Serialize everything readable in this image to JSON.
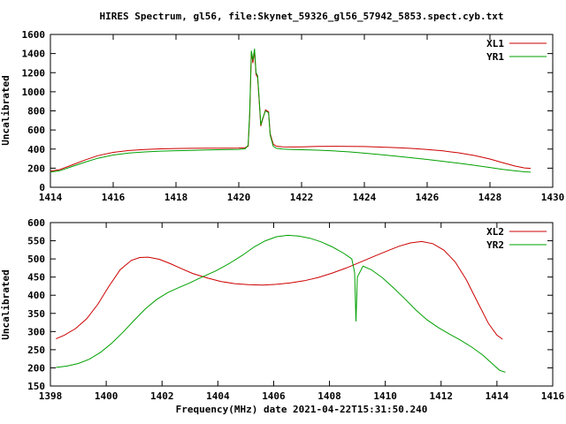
{
  "figure": {
    "background": "#ffffff",
    "axis_color": "#000000"
  },
  "chart_data": [
    {
      "type": "line",
      "title": "HIRES Spectrum, gl56, file:Skynet_59326_gl56_57942_5853.spect.cyb.txt",
      "xlabel": "",
      "ylabel": "Uncalibrated",
      "xlim": [
        1414,
        1430
      ],
      "ylim": [
        0,
        1600
      ],
      "xticks": [
        1414,
        1416,
        1418,
        1420,
        1422,
        1424,
        1426,
        1428,
        1430
      ],
      "yticks": [
        0,
        200,
        400,
        600,
        800,
        1000,
        1200,
        1400,
        1600
      ],
      "grid": false,
      "legend_position": "top-right",
      "series": [
        {
          "name": "XL1",
          "color": "#cc0000",
          "points": [
            [
              1414,
              168
            ],
            [
              1414.3,
              185
            ],
            [
              1414.7,
              235
            ],
            [
              1415.1,
              285
            ],
            [
              1415.5,
              330
            ],
            [
              1416,
              365
            ],
            [
              1416.5,
              385
            ],
            [
              1417,
              396
            ],
            [
              1417.5,
              402
            ],
            [
              1418,
              406
            ],
            [
              1418.5,
              408
            ],
            [
              1419,
              409
            ],
            [
              1419.5,
              410
            ],
            [
              1420,
              411
            ],
            [
              1420.2,
              414
            ],
            [
              1420.3,
              430
            ],
            [
              1420.35,
              760
            ],
            [
              1420.4,
              1410
            ],
            [
              1420.45,
              1300
            ],
            [
              1420.5,
              1430
            ],
            [
              1420.55,
              1180
            ],
            [
              1420.6,
              1150
            ],
            [
              1420.65,
              900
            ],
            [
              1420.7,
              640
            ],
            [
              1420.75,
              700
            ],
            [
              1420.85,
              810
            ],
            [
              1420.95,
              790
            ],
            [
              1421,
              560
            ],
            [
              1421.1,
              450
            ],
            [
              1421.2,
              430
            ],
            [
              1421.4,
              424
            ],
            [
              1421.7,
              422
            ],
            [
              1422,
              424
            ],
            [
              1422.5,
              427
            ],
            [
              1423,
              429
            ],
            [
              1423.5,
              428
            ],
            [
              1424,
              426
            ],
            [
              1424.5,
              421
            ],
            [
              1425,
              415
            ],
            [
              1425.5,
              407
            ],
            [
              1426,
              396
            ],
            [
              1426.5,
              381
            ],
            [
              1427,
              361
            ],
            [
              1427.5,
              333
            ],
            [
              1428,
              296
            ],
            [
              1428.4,
              258
            ],
            [
              1428.8,
              222
            ],
            [
              1429.1,
              203
            ],
            [
              1429.3,
              198
            ]
          ]
        },
        {
          "name": "YR1",
          "color": "#00a000",
          "points": [
            [
              1414,
              158
            ],
            [
              1414.3,
              173
            ],
            [
              1414.7,
              218
            ],
            [
              1415.1,
              263
            ],
            [
              1415.5,
              303
            ],
            [
              1416,
              338
            ],
            [
              1416.5,
              358
            ],
            [
              1417,
              370
            ],
            [
              1417.5,
              378
            ],
            [
              1418,
              383
            ],
            [
              1418.5,
              387
            ],
            [
              1419,
              391
            ],
            [
              1419.5,
              394
            ],
            [
              1420,
              397
            ],
            [
              1420.2,
              402
            ],
            [
              1420.3,
              440
            ],
            [
              1420.35,
              800
            ],
            [
              1420.4,
              1430
            ],
            [
              1420.45,
              1330
            ],
            [
              1420.5,
              1450
            ],
            [
              1420.55,
              1200
            ],
            [
              1420.6,
              1170
            ],
            [
              1420.65,
              920
            ],
            [
              1420.7,
              650
            ],
            [
              1420.75,
              710
            ],
            [
              1420.85,
              800
            ],
            [
              1420.95,
              780
            ],
            [
              1421,
              545
            ],
            [
              1421.1,
              430
            ],
            [
              1421.2,
              408
            ],
            [
              1421.4,
              400
            ],
            [
              1421.7,
              396
            ],
            [
              1422,
              393
            ],
            [
              1422.5,
              388
            ],
            [
              1423,
              381
            ],
            [
              1423.5,
              371
            ],
            [
              1424,
              357
            ],
            [
              1424.5,
              342
            ],
            [
              1425,
              326
            ],
            [
              1425.5,
              309
            ],
            [
              1426,
              291
            ],
            [
              1426.5,
              272
            ],
            [
              1427,
              252
            ],
            [
              1427.5,
              230
            ],
            [
              1428,
              207
            ],
            [
              1428.4,
              188
            ],
            [
              1428.8,
              172
            ],
            [
              1429.1,
              162
            ],
            [
              1429.3,
              158
            ]
          ]
        }
      ]
    },
    {
      "type": "line",
      "title": "",
      "xlabel": "Frequency(MHz) date 2021-04-22T15:31:50.240",
      "ylabel": "Uncalibrated",
      "xlim": [
        1398,
        1416
      ],
      "ylim": [
        150,
        600
      ],
      "xticks": [
        1398,
        1400,
        1402,
        1404,
        1406,
        1408,
        1410,
        1412,
        1414,
        1416
      ],
      "yticks": [
        150,
        200,
        250,
        300,
        350,
        400,
        450,
        500,
        550,
        600
      ],
      "grid": false,
      "legend_position": "top-right",
      "series": [
        {
          "name": "XL2",
          "color": "#cc0000",
          "points": [
            [
              1398.2,
              280
            ],
            [
              1398.5,
              290
            ],
            [
              1398.9,
              308
            ],
            [
              1399.3,
              335
            ],
            [
              1399.7,
              375
            ],
            [
              1400.1,
              425
            ],
            [
              1400.5,
              470
            ],
            [
              1400.9,
              496
            ],
            [
              1401.2,
              504
            ],
            [
              1401.5,
              505
            ],
            [
              1401.9,
              499
            ],
            [
              1402.3,
              487
            ],
            [
              1402.7,
              473
            ],
            [
              1403.1,
              460
            ],
            [
              1403.6,
              448
            ],
            [
              1404.1,
              438
            ],
            [
              1404.6,
              432
            ],
            [
              1405.1,
              429
            ],
            [
              1405.6,
              428
            ],
            [
              1406.1,
              430
            ],
            [
              1406.6,
              434
            ],
            [
              1407.1,
              440
            ],
            [
              1407.6,
              449
            ],
            [
              1408.1,
              461
            ],
            [
              1408.6,
              475
            ],
            [
              1409.1,
              491
            ],
            [
              1409.6,
              507
            ],
            [
              1410.1,
              523
            ],
            [
              1410.5,
              535
            ],
            [
              1410.9,
              544
            ],
            [
              1411.3,
              548
            ],
            [
              1411.7,
              542
            ],
            [
              1412.1,
              524
            ],
            [
              1412.5,
              492
            ],
            [
              1412.9,
              443
            ],
            [
              1413.3,
              382
            ],
            [
              1413.7,
              322
            ],
            [
              1414,
              290
            ],
            [
              1414.2,
              279
            ]
          ]
        },
        {
          "name": "YR2",
          "color": "#00a000",
          "points": [
            [
              1398.2,
              201
            ],
            [
              1398.6,
              205
            ],
            [
              1399,
              212
            ],
            [
              1399.4,
              224
            ],
            [
              1399.8,
              243
            ],
            [
              1400.2,
              268
            ],
            [
              1400.6,
              298
            ],
            [
              1401,
              331
            ],
            [
              1401.4,
              362
            ],
            [
              1401.8,
              388
            ],
            [
              1402.2,
              407
            ],
            [
              1402.6,
              421
            ],
            [
              1403,
              434
            ],
            [
              1403.4,
              449
            ],
            [
              1403.9,
              466
            ],
            [
              1404.4,
              487
            ],
            [
              1404.9,
              511
            ],
            [
              1405.3,
              533
            ],
            [
              1405.7,
              550
            ],
            [
              1406.1,
              561
            ],
            [
              1406.5,
              565
            ],
            [
              1406.9,
              563
            ],
            [
              1407.3,
              557
            ],
            [
              1407.7,
              547
            ],
            [
              1408.1,
              533
            ],
            [
              1408.5,
              516
            ],
            [
              1408.8,
              500
            ],
            [
              1408.9,
              462
            ],
            [
              1408.95,
              328
            ],
            [
              1409,
              450
            ],
            [
              1409.2,
              480
            ],
            [
              1409.5,
              470
            ],
            [
              1409.9,
              448
            ],
            [
              1410.3,
              420
            ],
            [
              1410.7,
              390
            ],
            [
              1411.1,
              359
            ],
            [
              1411.5,
              332
            ],
            [
              1411.9,
              311
            ],
            [
              1412.3,
              293
            ],
            [
              1412.7,
              276
            ],
            [
              1413.1,
              257
            ],
            [
              1413.5,
              235
            ],
            [
              1413.9,
              207
            ],
            [
              1414.1,
              193
            ],
            [
              1414.3,
              188
            ]
          ]
        }
      ]
    }
  ]
}
